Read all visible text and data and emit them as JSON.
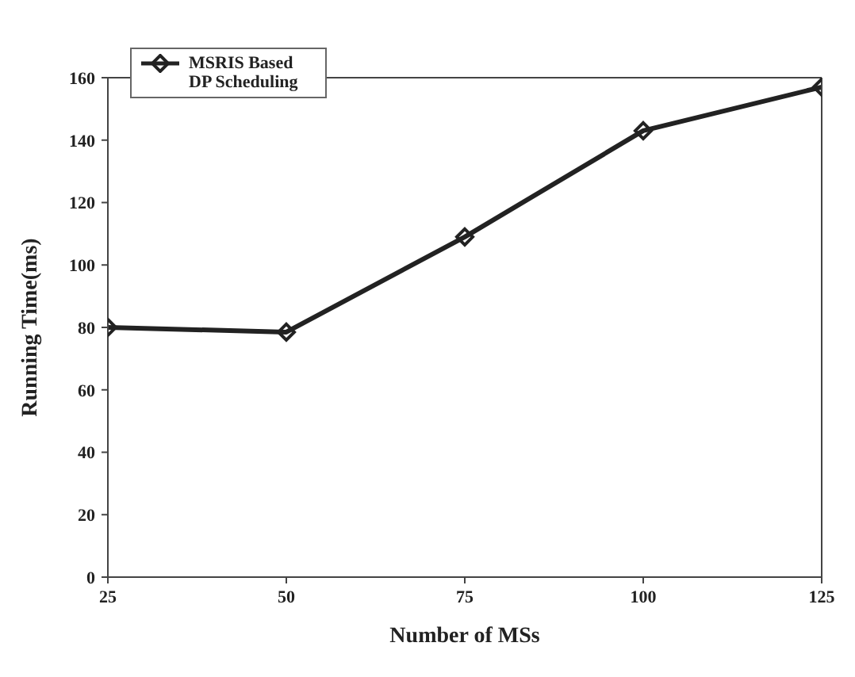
{
  "chart_data": {
    "type": "line",
    "xlabel": "Number of MSs",
    "ylabel": "Running Time(ms)",
    "x": [
      25,
      50,
      75,
      100,
      125
    ],
    "series": [
      {
        "name": "MSRIS Based DP Scheduling",
        "color": "#222222",
        "values": [
          80,
          78.5,
          109,
          143,
          157
        ]
      }
    ],
    "xlim": [
      25,
      125
    ],
    "xticks": [
      25,
      50,
      75,
      100,
      125
    ],
    "ylim": [
      0,
      160
    ],
    "yticks": [
      0,
      20,
      40,
      60,
      80,
      100,
      120,
      140,
      160
    ],
    "grid": false,
    "legend": "top left",
    "marker": "diamond",
    "line_style": "solid"
  }
}
